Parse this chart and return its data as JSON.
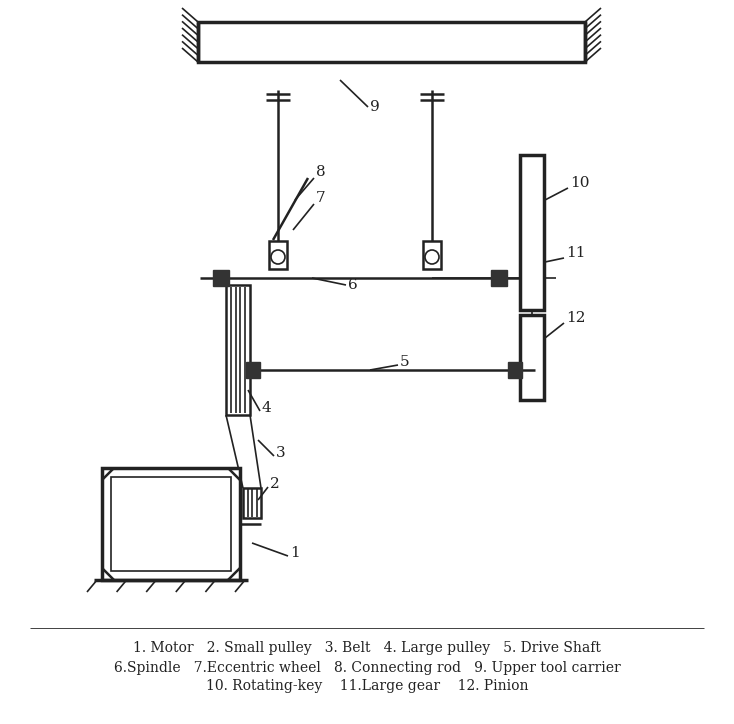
{
  "bg_color": "#ffffff",
  "line_color": "#222222",
  "caption_line1": "1. Motor   2. Small pulley   3. Belt   4. Large pulley   5. Drive Shaft",
  "caption_line2": "6.Spindle   7.Eccentric wheel   8. Connecting rod   9. Upper tool carrier",
  "caption_line3": "10. Rotating-key    11.Large gear    12. Pinion"
}
